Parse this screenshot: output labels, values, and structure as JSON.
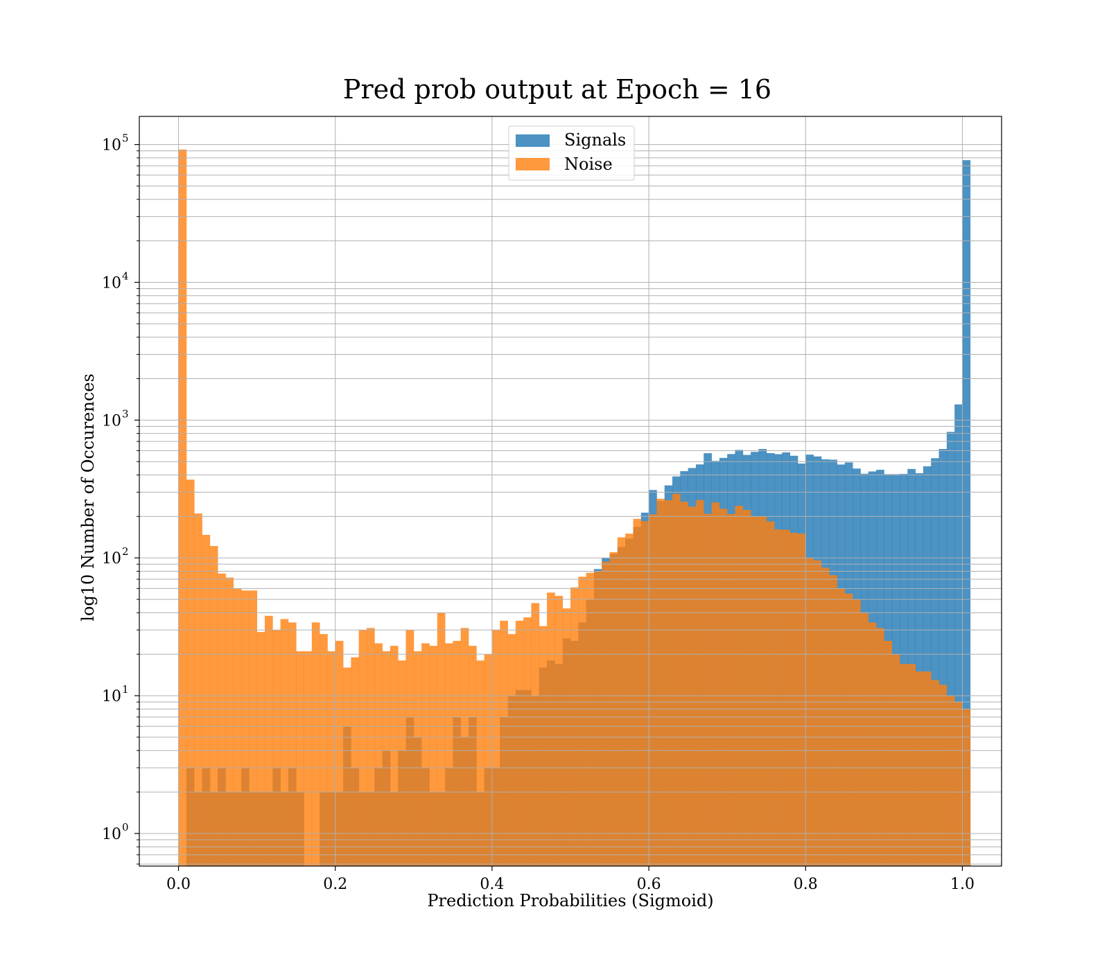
{
  "chart_data": {
    "type": "bar",
    "title": "Pred prob output at Epoch = 16",
    "xlabel": "Prediction Probabilities (Sigmoid)",
    "ylabel": "log10 Number of Occurences",
    "xlim": [
      -0.05,
      1.05
    ],
    "ylim": [
      0.58,
      160000
    ],
    "yscale": "log",
    "grid": true,
    "legend_position": "top-center",
    "bin_start": 0.0,
    "bin_width": 0.01,
    "x_ticks": [
      {
        "value": 0.0,
        "label": "0.0"
      },
      {
        "value": 0.2,
        "label": "0.2"
      },
      {
        "value": 0.4,
        "label": "0.4"
      },
      {
        "value": 0.6,
        "label": "0.6"
      },
      {
        "value": 0.8,
        "label": "0.8"
      },
      {
        "value": 1.0,
        "label": "1.0"
      }
    ],
    "y_ticks": [
      {
        "value": 1,
        "base": "10",
        "exp": "0"
      },
      {
        "value": 10,
        "base": "10",
        "exp": "1"
      },
      {
        "value": 100,
        "base": "10",
        "exp": "2"
      },
      {
        "value": 1000,
        "base": "10",
        "exp": "3"
      },
      {
        "value": 10000,
        "base": "10",
        "exp": "4"
      },
      {
        "value": 100000,
        "base": "10",
        "exp": "5"
      }
    ],
    "series": [
      {
        "name": "Signals",
        "color": "#1f77b4",
        "opacity": 0.8,
        "values": [
          0,
          3,
          2,
          3,
          2,
          3,
          2,
          2,
          3,
          2,
          2,
          2,
          3,
          2,
          3,
          2,
          0,
          0,
          2,
          2,
          2,
          6,
          3,
          2,
          2,
          3,
          4,
          2,
          4,
          7,
          5,
          3,
          2,
          2,
          3,
          7,
          5,
          7,
          2,
          3,
          3,
          7,
          10,
          11,
          11,
          10,
          16,
          18,
          17,
          26,
          25,
          34,
          50,
          83,
          100,
          107,
          120,
          138,
          168,
          213,
          311,
          259,
          336,
          390,
          426,
          449,
          477,
          575,
          506,
          532,
          567,
          608,
          559,
          588,
          617,
          576,
          566,
          583,
          551,
          484,
          562,
          545,
          519,
          516,
          476,
          493,
          445,
          408,
          424,
          436,
          405,
          405,
          407,
          442,
          412,
          462,
          529,
          617,
          821,
          1300,
          77000
        ]
      },
      {
        "name": "Noise",
        "color": "#ff7f0e",
        "opacity": 0.8,
        "values": [
          92000,
          370,
          210,
          147,
          122,
          77,
          72,
          60,
          58,
          58,
          29,
          38,
          30,
          36,
          34,
          21,
          21,
          34,
          28,
          21,
          25,
          16,
          19,
          30,
          31,
          24,
          21,
          23,
          18,
          30,
          21,
          24,
          23,
          40,
          24,
          25,
          31,
          23,
          18,
          20,
          30,
          35,
          28,
          35,
          37,
          47,
          32,
          56,
          53,
          43,
          61,
          73,
          78,
          80,
          94,
          110,
          141,
          150,
          192,
          185,
          207,
          269,
          262,
          292,
          256,
          236,
          263,
          209,
          253,
          227,
          208,
          239,
          223,
          201,
          200,
          184,
          161,
          160,
          152,
          150,
          100,
          96,
          85,
          75,
          60,
          55,
          50,
          40,
          34,
          31,
          25,
          20,
          17,
          17,
          15,
          15,
          13,
          12,
          10,
          9,
          8
        ]
      }
    ]
  }
}
